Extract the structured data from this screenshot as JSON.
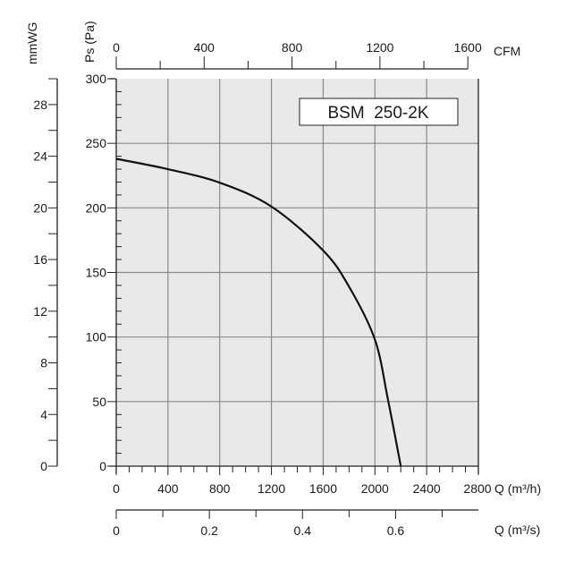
{
  "chart_data": {
    "type": "line",
    "title": "BSM  250-2K",
    "xlabel": "Q (m³/h)",
    "ylabel": "Ps (Pa)",
    "xlim": [
      0,
      2800
    ],
    "ylim": [
      0,
      300
    ],
    "grid": true,
    "x_ticks": [
      "0",
      "400",
      "800",
      "1200",
      "1600",
      "2000",
      "2400",
      "2800"
    ],
    "y_ticks": [
      "0",
      "50",
      "100",
      "150",
      "200",
      "250",
      "300"
    ],
    "secondary_axes": {
      "cfm": {
        "label": "CFM",
        "ticks": [
          "0",
          "400",
          "800",
          "1200",
          "1600"
        ],
        "max": 1600
      },
      "m3s": {
        "label": "Q (m³/s)",
        "ticks": [
          "0",
          "0.2",
          "0.4",
          "0.6"
        ],
        "max": 0.7
      },
      "mmwg": {
        "label": "mmWG",
        "ticks": [
          "0",
          "4",
          "8",
          "12",
          "16",
          "20",
          "24",
          "28"
        ],
        "max": 30
      }
    },
    "series": [
      {
        "name": "BSM 250-2K",
        "x": [
          0,
          400,
          800,
          1200,
          1600,
          1800,
          2000,
          2100,
          2200
        ],
        "y": [
          238,
          230,
          219.5,
          201,
          167,
          139,
          98,
          52,
          0
        ]
      }
    ]
  }
}
